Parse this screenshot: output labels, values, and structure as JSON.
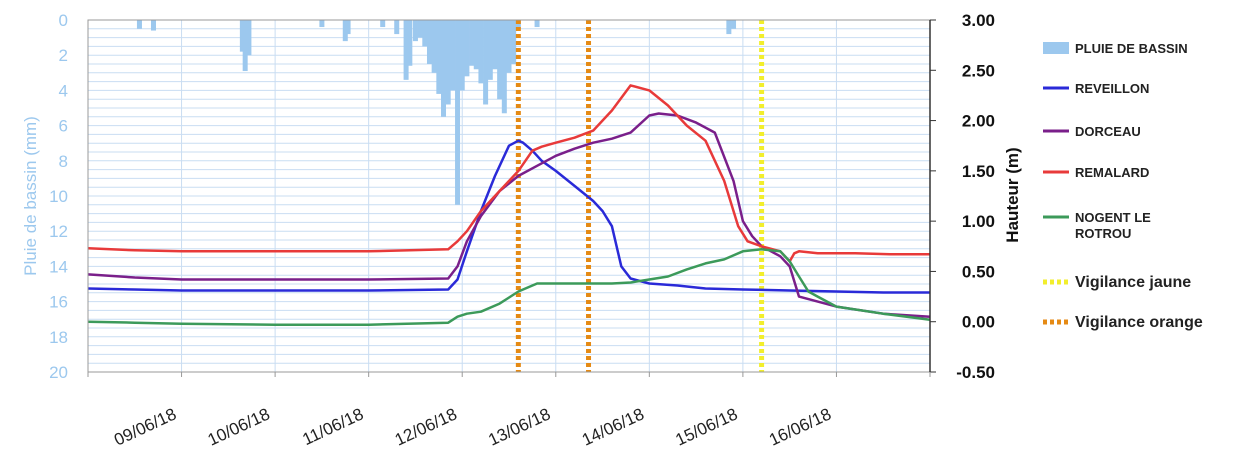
{
  "chart_data": {
    "type": "line",
    "y_left": {
      "label": "Pluie de bassin (mm)",
      "ticks": [
        "0",
        "2",
        "4",
        "6",
        "8",
        "10",
        "12",
        "14",
        "16",
        "18",
        "20"
      ],
      "range": [
        0,
        20
      ],
      "inverted": true,
      "color": "#9cc8ee"
    },
    "y_right": {
      "label": "Hauteur (m)",
      "ticks": [
        "3.00",
        "2.50",
        "2.00",
        "1.50",
        "1.00",
        "0.50",
        "0.00",
        "-0.50"
      ],
      "range": [
        -0.5,
        3.0
      ]
    },
    "x": {
      "ticks": [
        "09/06/18",
        "10/06/18",
        "11/06/18",
        "12/06/18",
        "13/06/18",
        "14/06/18",
        "15/06/18",
        "16/06/18"
      ],
      "range": [
        0,
        9.0
      ]
    },
    "grid": true,
    "legend_position": "right",
    "rain": {
      "name": "PLUIE DE BASSIN",
      "color": "#9cc8ee",
      "bars": [
        [
          0.55,
          0.5
        ],
        [
          0.7,
          0.6
        ],
        [
          1.65,
          1.8
        ],
        [
          1.68,
          2.9
        ],
        [
          1.72,
          2.0
        ],
        [
          2.5,
          0.4
        ],
        [
          2.75,
          1.2
        ],
        [
          2.78,
          0.8
        ],
        [
          3.15,
          0.4
        ],
        [
          3.3,
          0.8
        ],
        [
          3.4,
          3.4
        ],
        [
          3.44,
          2.6
        ],
        [
          3.5,
          1.2
        ],
        [
          3.55,
          1.0
        ],
        [
          3.6,
          1.5
        ],
        [
          3.65,
          2.5
        ],
        [
          3.7,
          3.0
        ],
        [
          3.75,
          4.2
        ],
        [
          3.8,
          5.5
        ],
        [
          3.85,
          4.8
        ],
        [
          3.9,
          4.0
        ],
        [
          3.95,
          10.5
        ],
        [
          4.0,
          4.0
        ],
        [
          4.05,
          3.2
        ],
        [
          4.1,
          2.6
        ],
        [
          4.15,
          2.8
        ],
        [
          4.2,
          3.6
        ],
        [
          4.25,
          4.8
        ],
        [
          4.3,
          3.4
        ],
        [
          4.35,
          2.8
        ],
        [
          4.4,
          4.5
        ],
        [
          4.45,
          5.3
        ],
        [
          4.5,
          3.0
        ],
        [
          4.55,
          2.5
        ],
        [
          4.6,
          0.5
        ],
        [
          4.8,
          0.4
        ],
        [
          6.85,
          0.8
        ],
        [
          6.9,
          0.5
        ]
      ]
    },
    "series": [
      {
        "name": "REVEILLON",
        "color": "#2a2ad8",
        "x": [
          0,
          0.5,
          1,
          2,
          3,
          3.85,
          3.95,
          4.05,
          4.2,
          4.35,
          4.5,
          4.6,
          4.65,
          4.75,
          4.85,
          5,
          5.2,
          5.4,
          5.5,
          5.6,
          5.7,
          5.8,
          6,
          6.3,
          6.6,
          7,
          7.5,
          8,
          8.5,
          9
        ],
        "y": [
          0.33,
          0.32,
          0.31,
          0.31,
          0.31,
          0.32,
          0.42,
          0.7,
          1.1,
          1.45,
          1.75,
          1.8,
          1.78,
          1.7,
          1.6,
          1.5,
          1.35,
          1.2,
          1.1,
          0.95,
          0.55,
          0.43,
          0.38,
          0.36,
          0.33,
          0.32,
          0.31,
          0.3,
          0.29,
          0.29
        ]
      },
      {
        "name": "DORCEAU",
        "color": "#7a1f8a",
        "x": [
          0,
          0.5,
          1,
          2,
          3,
          3.85,
          3.95,
          4.05,
          4.2,
          4.4,
          4.6,
          4.8,
          5,
          5.2,
          5.4,
          5.6,
          5.8,
          6,
          6.1,
          6.3,
          6.5,
          6.7,
          6.9,
          7,
          7.1,
          7.2,
          7.3,
          7.4,
          7.5,
          7.6,
          8,
          8.5,
          9
        ],
        "y": [
          0.47,
          0.44,
          0.42,
          0.42,
          0.42,
          0.43,
          0.55,
          0.8,
          1.05,
          1.3,
          1.45,
          1.55,
          1.65,
          1.72,
          1.78,
          1.82,
          1.88,
          2.05,
          2.07,
          2.05,
          1.98,
          1.88,
          1.4,
          1.0,
          0.85,
          0.75,
          0.7,
          0.65,
          0.55,
          0.25,
          0.15,
          0.08,
          0.05
        ]
      },
      {
        "name": "REMALARD",
        "color": "#e83a3a",
        "x": [
          0,
          0.5,
          1,
          2,
          3,
          3.85,
          3.95,
          4.05,
          4.2,
          4.4,
          4.6,
          4.75,
          4.85,
          5,
          5.2,
          5.4,
          5.6,
          5.8,
          6,
          6.2,
          6.4,
          6.6,
          6.8,
          6.95,
          7.05,
          7.2,
          7.4,
          7.5,
          7.55,
          7.6,
          7.8,
          8.2,
          8.6,
          9
        ],
        "y": [
          0.73,
          0.71,
          0.7,
          0.7,
          0.7,
          0.72,
          0.8,
          0.9,
          1.1,
          1.3,
          1.5,
          1.7,
          1.74,
          1.78,
          1.83,
          1.9,
          2.1,
          2.35,
          2.3,
          2.15,
          1.95,
          1.8,
          1.4,
          0.95,
          0.8,
          0.75,
          0.7,
          0.6,
          0.68,
          0.7,
          0.68,
          0.68,
          0.67,
          0.67
        ]
      },
      {
        "name": "NOGENT LE ROTROU",
        "color": "#3c9a5a",
        "x": [
          0,
          0.5,
          1,
          2,
          3,
          3.85,
          3.95,
          4.05,
          4.2,
          4.4,
          4.6,
          4.8,
          5,
          5.2,
          5.4,
          5.6,
          5.8,
          6,
          6.2,
          6.4,
          6.6,
          6.8,
          7,
          7.2,
          7.4,
          7.5,
          7.6,
          7.7,
          7.8,
          8,
          8.5,
          9
        ],
        "y": [
          0.0,
          -0.01,
          -0.02,
          -0.03,
          -0.03,
          -0.01,
          0.05,
          0.08,
          0.1,
          0.18,
          0.3,
          0.38,
          0.38,
          0.38,
          0.38,
          0.38,
          0.39,
          0.42,
          0.45,
          0.52,
          0.58,
          0.62,
          0.7,
          0.72,
          0.7,
          0.6,
          0.45,
          0.3,
          0.25,
          0.15,
          0.08,
          0.02
        ]
      }
    ],
    "vigilance": [
      {
        "name": "Vigilance jaune",
        "color": "#f2ee2c",
        "x": 7.2
      },
      {
        "name": "Vigilance orange",
        "color": "#e58a14",
        "x": 4.6
      },
      {
        "name": "Vigilance orange",
        "color": "#e58a14",
        "x": 5.35
      }
    ],
    "legend": [
      {
        "label": "PLUIE DE BASSIN",
        "kind": "bar",
        "color": "#9cc8ee"
      },
      {
        "label": "REVEILLON",
        "kind": "line",
        "color": "#2a2ad8"
      },
      {
        "label": "DORCEAU",
        "kind": "line",
        "color": "#7a1f8a"
      },
      {
        "label": "REMALARD",
        "kind": "line",
        "color": "#e83a3a"
      },
      {
        "label": "NOGENT LE",
        "label2": "ROTROU",
        "kind": "line",
        "color": "#3c9a5a"
      },
      {
        "label": "Vigilance jaune",
        "kind": "dotted",
        "color": "#f2ee2c"
      },
      {
        "label": "Vigilance orange",
        "kind": "dotted",
        "color": "#e58a14"
      }
    ]
  }
}
